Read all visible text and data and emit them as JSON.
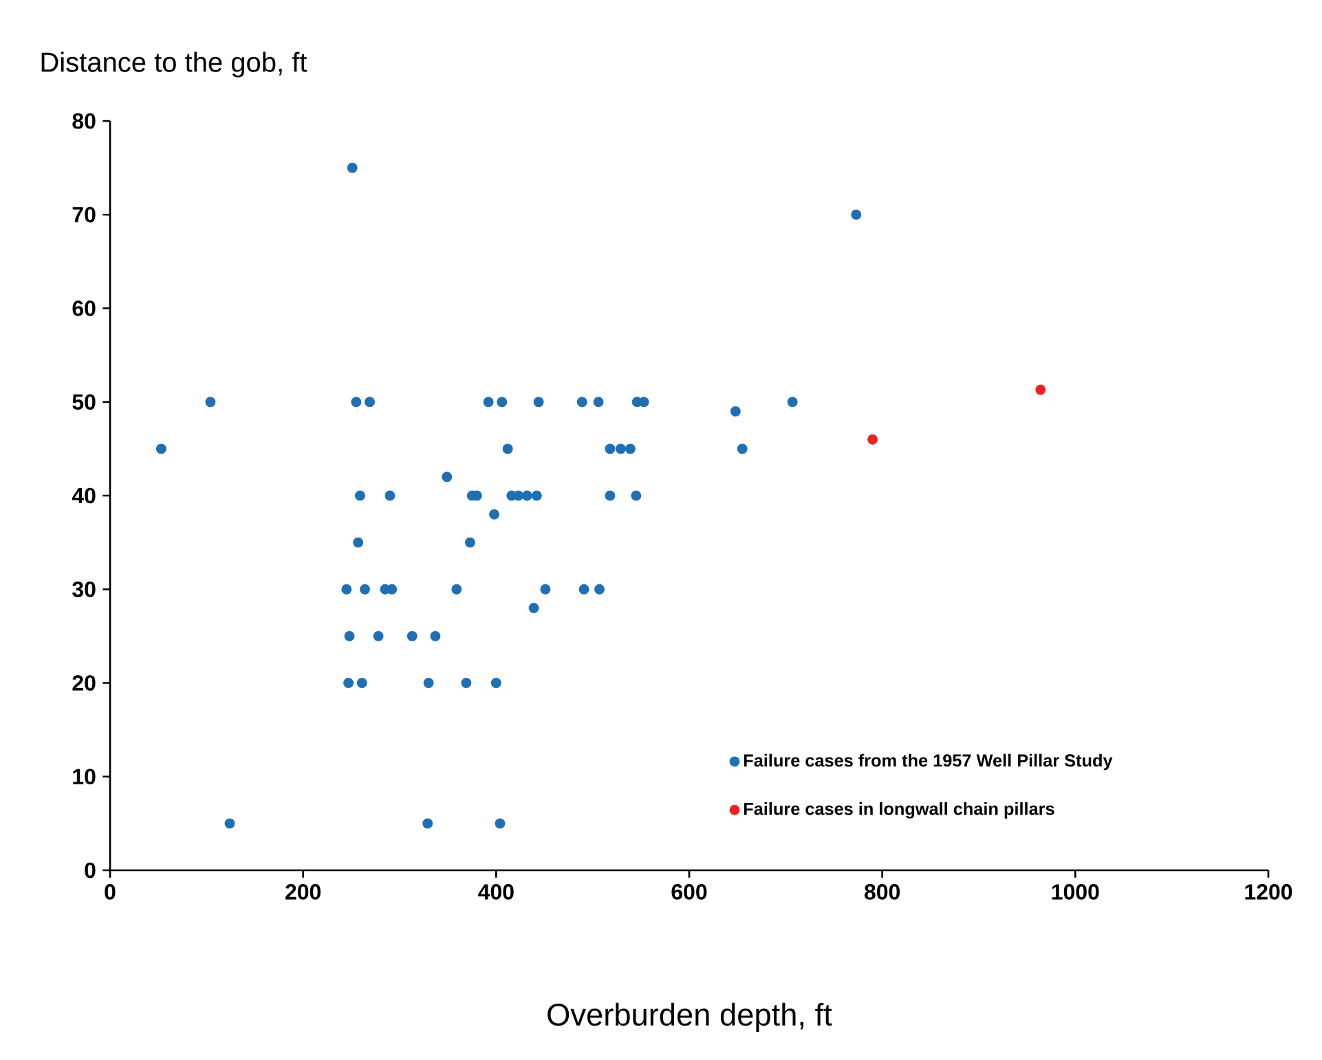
{
  "chart_data": {
    "type": "scatter",
    "xlabel": "Overburden depth, ft",
    "ylabel": "Distance to the gob, ft",
    "xlim": [
      0,
      1200
    ],
    "xticks": [
      0,
      200,
      400,
      600,
      800,
      1000,
      1200
    ],
    "ylim": [
      0,
      80
    ],
    "yticks": [
      0,
      10,
      20,
      30,
      40,
      50,
      60,
      70,
      80
    ],
    "grid": false,
    "legend": "bottom right",
    "marker": "circle",
    "series": [
      {
        "name": "Failure cases from the 1957 Well Pillar Study",
        "color": "#1f6fb4",
        "x": [
          251,
          773,
          104,
          53,
          255,
          269,
          392,
          406,
          444,
          489,
          506,
          546,
          553,
          648,
          707,
          412,
          518,
          529,
          539,
          655,
          349,
          259,
          290,
          375,
          380,
          416,
          423,
          432,
          442,
          518,
          545,
          398,
          257,
          373,
          245,
          264,
          285,
          292,
          359,
          451,
          491,
          507,
          439,
          248,
          278,
          313,
          337,
          247,
          261,
          330,
          369,
          400,
          124,
          329,
          404
        ],
        "values": [
          75,
          70,
          50,
          45,
          50,
          50,
          50,
          50,
          50,
          50,
          50,
          50,
          50,
          49,
          50,
          45,
          45,
          45,
          45,
          45,
          42,
          40,
          40,
          40,
          40,
          40,
          40,
          40,
          40,
          40,
          40,
          38,
          35,
          35,
          30,
          30,
          30,
          30,
          30,
          30,
          30,
          30,
          28,
          25,
          25,
          25,
          25,
          20,
          20,
          20,
          20,
          20,
          5,
          5,
          5
        ]
      },
      {
        "name": "Failure cases in longwall chain pillars",
        "color": "#ee2222",
        "x": [
          790,
          964
        ],
        "values": [
          46,
          51.3
        ]
      }
    ]
  }
}
